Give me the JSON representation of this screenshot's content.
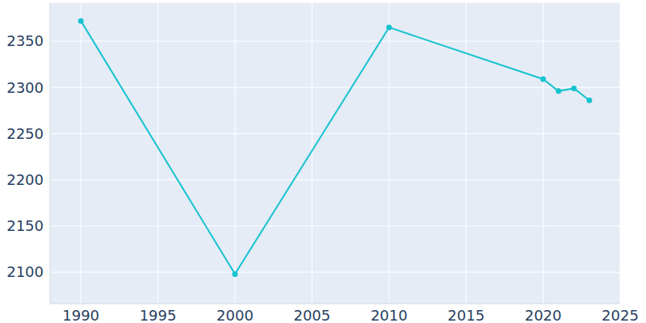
{
  "chart_data": {
    "type": "line",
    "x": [
      1990,
      2000,
      2010,
      2020,
      2021,
      2022,
      2023
    ],
    "values": [
      2372,
      2098,
      2365,
      2309,
      2296,
      2299,
      2286
    ],
    "color": "#17c3cf",
    "xlim": [
      1988,
      2025
    ],
    "xticks": [
      1990,
      1995,
      2000,
      2005,
      2010,
      2015,
      2020,
      2025
    ],
    "ylim": [
      2066,
      2392
    ],
    "yticks": [
      2100,
      2150,
      2200,
      2250,
      2300,
      2350
    ],
    "grid": true,
    "marker": "circle"
  }
}
